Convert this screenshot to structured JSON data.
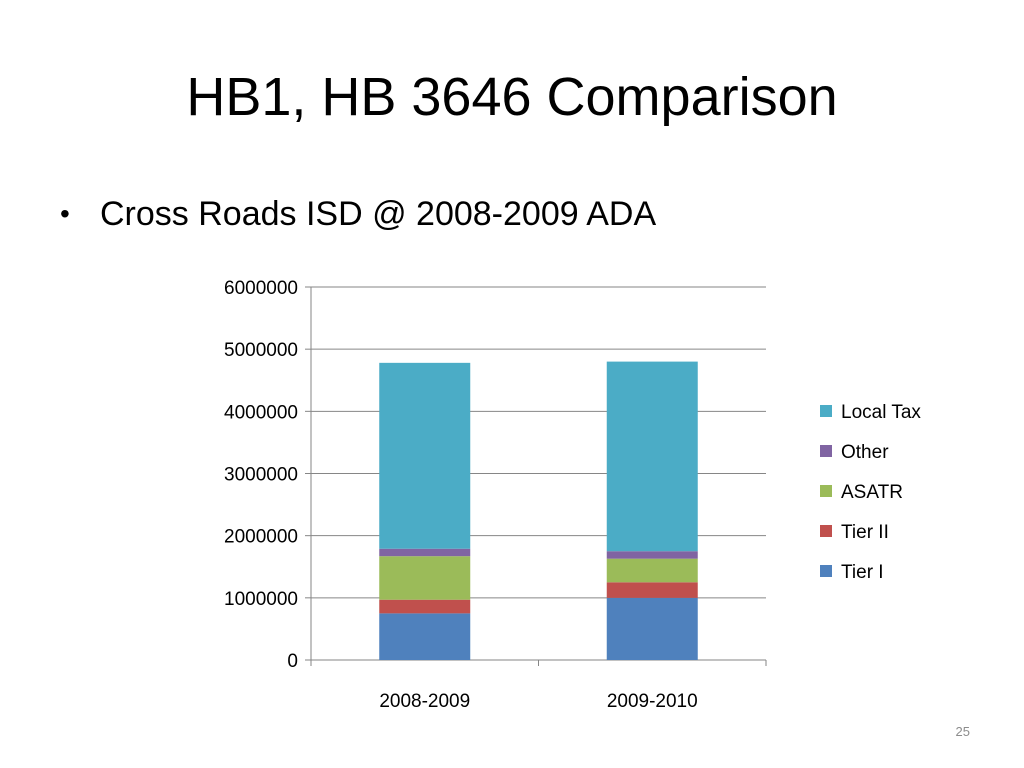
{
  "slide": {
    "title": "HB1, HB 3646 Comparison",
    "bullet": "Cross Roads ISD @ 2008-2009 ADA",
    "slide_number": "25"
  },
  "chart_data": {
    "type": "bar",
    "stacked": true,
    "categories": [
      "2008-2009",
      "2009-2010"
    ],
    "series": [
      {
        "name": "Tier I",
        "color": "#4f81bd",
        "values": [
          750000,
          1000000
        ]
      },
      {
        "name": "Tier II",
        "color": "#c0504d",
        "values": [
          220000,
          250000
        ]
      },
      {
        "name": "ASATR",
        "color": "#9bbb59",
        "values": [
          700000,
          380000
        ]
      },
      {
        "name": "Other",
        "color": "#8064a2",
        "values": [
          120000,
          120000
        ]
      },
      {
        "name": "Local Tax",
        "color": "#4bacc6",
        "values": [
          2990000,
          3050000
        ]
      }
    ],
    "ylim": [
      0,
      6000000
    ],
    "yticks": [
      "0",
      "1000000",
      "2000000",
      "3000000",
      "4000000",
      "5000000",
      "6000000"
    ],
    "grid": true,
    "legend_position": "right",
    "legend_order": [
      "Local Tax",
      "Other",
      "ASATR",
      "Tier II",
      "Tier I"
    ]
  }
}
